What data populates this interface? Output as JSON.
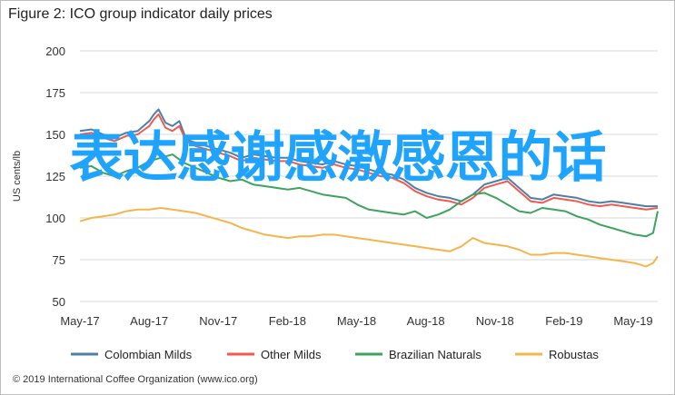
{
  "chart_data": {
    "type": "line",
    "title": "Figure 2: ICO group indicator daily prices",
    "ylabel": "US cents/lb",
    "ylim": [
      50,
      200
    ],
    "yticks": [
      50,
      75,
      100,
      125,
      150,
      175,
      200
    ],
    "xticks": [
      "May-17",
      "Aug-17",
      "Nov-17",
      "Feb-18",
      "May-18",
      "Aug-18",
      "Nov-18",
      "Feb-19",
      "May-19"
    ],
    "xlim": [
      0,
      25
    ],
    "grid": true,
    "legend_position": "bottom",
    "series": [
      {
        "name": "Colombian Milds",
        "color": "#4e7fa6",
        "x": [
          0,
          0.5,
          1,
          1.5,
          2,
          2.5,
          3,
          3.2,
          3.4,
          3.7,
          4,
          4.3,
          4.6,
          5,
          5.5,
          6,
          6.5,
          7,
          7.5,
          8,
          8.5,
          9,
          9.5,
          10,
          10.5,
          11,
          11.5,
          12,
          12.5,
          13,
          13.5,
          14,
          14.5,
          15,
          15.5,
          16,
          16.5,
          17,
          17.5,
          18,
          18.5,
          19,
          19.5,
          20,
          20.5,
          21,
          21.5,
          22,
          22.5,
          23,
          23.5,
          24,
          24.5,
          25
        ],
        "values": [
          152,
          153,
          150,
          148,
          151,
          152,
          158,
          162,
          165,
          157,
          155,
          158,
          147,
          145,
          143,
          141,
          139,
          136,
          138,
          137,
          136,
          136,
          134,
          133,
          132,
          134,
          132,
          131,
          129,
          127,
          126,
          123,
          118,
          115,
          113,
          112,
          110,
          114,
          120,
          122,
          124,
          118,
          112,
          111,
          114,
          113,
          112,
          110,
          109,
          110,
          109,
          108,
          107,
          107
        ]
      },
      {
        "name": "Other Milds",
        "color": "#f05a4f",
        "x": [
          0,
          0.5,
          1,
          1.5,
          2,
          2.5,
          3,
          3.2,
          3.4,
          3.7,
          4,
          4.3,
          4.6,
          5,
          5.5,
          6,
          6.5,
          7,
          7.5,
          8,
          8.5,
          9,
          9.5,
          10,
          10.5,
          11,
          11.5,
          12,
          12.5,
          13,
          13.5,
          14,
          14.5,
          15,
          15.5,
          16,
          16.5,
          17,
          17.5,
          18,
          18.5,
          19,
          19.5,
          20,
          20.5,
          21,
          21.5,
          22,
          22.5,
          23,
          23.5,
          24,
          24.5,
          25
        ],
        "values": [
          150,
          151,
          148,
          146,
          149,
          150,
          155,
          159,
          162,
          154,
          152,
          155,
          146,
          143,
          141,
          139,
          137,
          134,
          136,
          135,
          134,
          134,
          132,
          131,
          130,
          132,
          130,
          129,
          127,
          125,
          124,
          121,
          116,
          113,
          111,
          110,
          108,
          112,
          118,
          120,
          122,
          116,
          110,
          109,
          112,
          111,
          110,
          108,
          107,
          108,
          107,
          106,
          105,
          106
        ]
      },
      {
        "name": "Brazilian Naturals",
        "color": "#3fa35f",
        "x": [
          0,
          0.5,
          1,
          1.5,
          2,
          2.5,
          3,
          3.5,
          4,
          4.5,
          5,
          5.5,
          6,
          6.5,
          7,
          7.5,
          8,
          8.5,
          9,
          9.5,
          10,
          10.5,
          11,
          11.5,
          12,
          12.5,
          13,
          13.5,
          14,
          14.5,
          15,
          15.5,
          16,
          16.5,
          17,
          17.5,
          18,
          18.5,
          19,
          19.5,
          20,
          20.5,
          21,
          21.5,
          22,
          22.5,
          23,
          23.5,
          24,
          24.5,
          24.8,
          25
        ],
        "values": [
          130,
          131,
          127,
          125,
          128,
          130,
          134,
          136,
          138,
          133,
          130,
          127,
          124,
          122,
          123,
          120,
          119,
          118,
          117,
          118,
          116,
          114,
          113,
          112,
          108,
          105,
          104,
          103,
          102,
          104,
          100,
          102,
          105,
          110,
          114,
          115,
          112,
          108,
          104,
          103,
          106,
          105,
          104,
          101,
          99,
          96,
          94,
          92,
          90,
          89,
          91,
          104
        ]
      },
      {
        "name": "Robustas",
        "color": "#f5b54c",
        "x": [
          0,
          0.5,
          1,
          1.5,
          2,
          2.5,
          3,
          3.5,
          4,
          4.5,
          5,
          5.5,
          6,
          6.5,
          7,
          7.5,
          8,
          8.5,
          9,
          9.5,
          10,
          10.5,
          11,
          11.5,
          12,
          12.5,
          13,
          13.5,
          14,
          14.5,
          15,
          15.5,
          16,
          16.5,
          17,
          17.5,
          18,
          18.5,
          19,
          19.5,
          20,
          20.5,
          21,
          21.5,
          22,
          22.5,
          23,
          23.5,
          24,
          24.5,
          24.8,
          25
        ],
        "values": [
          98,
          100,
          101,
          102,
          104,
          105,
          105,
          106,
          105,
          104,
          103,
          101,
          99,
          97,
          94,
          92,
          90,
          89,
          88,
          89,
          89,
          90,
          90,
          89,
          88,
          87,
          86,
          85,
          84,
          83,
          82,
          81,
          80,
          83,
          88,
          85,
          84,
          83,
          81,
          78,
          78,
          79,
          79,
          78,
          77,
          76,
          75,
          74,
          73,
          71,
          73,
          77
        ]
      }
    ],
    "credit": "© 2019 International Coffee Organization (www.ico.org)"
  },
  "overlay_text": "表达感谢感激感恩的话",
  "overlay_color": "#1ea3ff"
}
